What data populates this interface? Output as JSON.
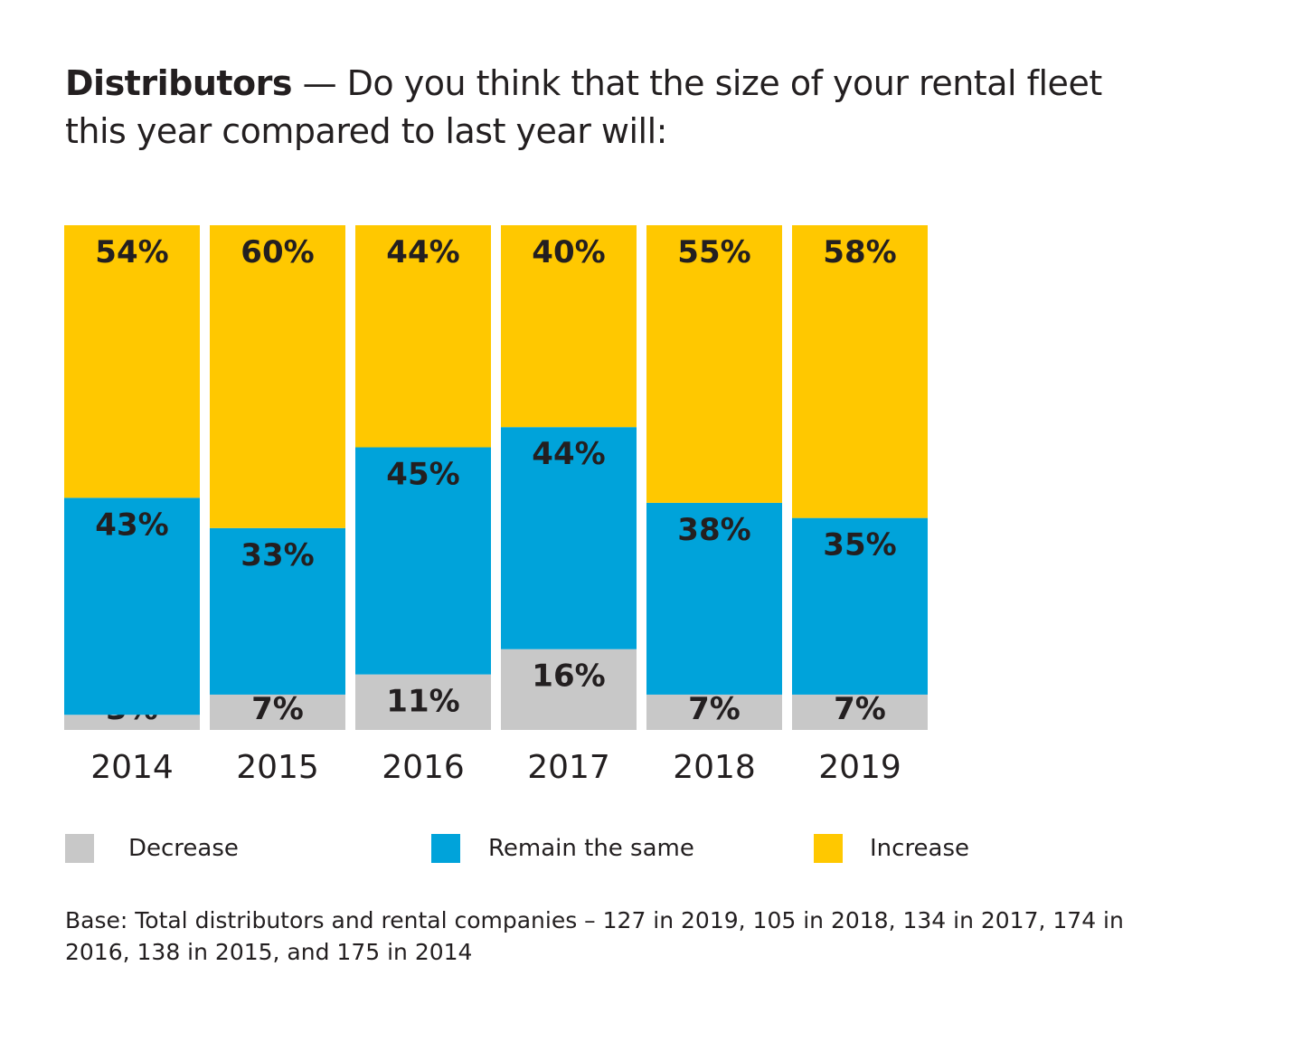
{
  "title": {
    "bold": "Distributors",
    "rest": " — Do you think that the size of your rental fleet this year compared to last year will:"
  },
  "colors": {
    "decrease": "#c8c8c8",
    "remain": "#00a3da",
    "increase": "#ffc800",
    "text": "#231f20"
  },
  "chart_data": {
    "type": "bar",
    "stacked": true,
    "categories": [
      "2014",
      "2015",
      "2016",
      "2017",
      "2018",
      "2019"
    ],
    "series": [
      {
        "name": "Decrease",
        "values": [
          3,
          7,
          11,
          16,
          7,
          7
        ]
      },
      {
        "name": "Remain the same",
        "values": [
          43,
          33,
          45,
          44,
          38,
          35
        ]
      },
      {
        "name": "Increase",
        "values": [
          54,
          60,
          44,
          40,
          55,
          58
        ]
      }
    ],
    "unit": "%",
    "ylim": [
      0,
      100
    ],
    "grid": false,
    "legend_placement": "bottom"
  },
  "legend": [
    "Decrease",
    "Remain the same",
    "Increase"
  ],
  "base_note": "Base: Total distributors and rental companies – 127 in 2019, 105 in 2018, 134 in 2017, 174 in 2016, 138 in 2015, and 175 in 2014"
}
